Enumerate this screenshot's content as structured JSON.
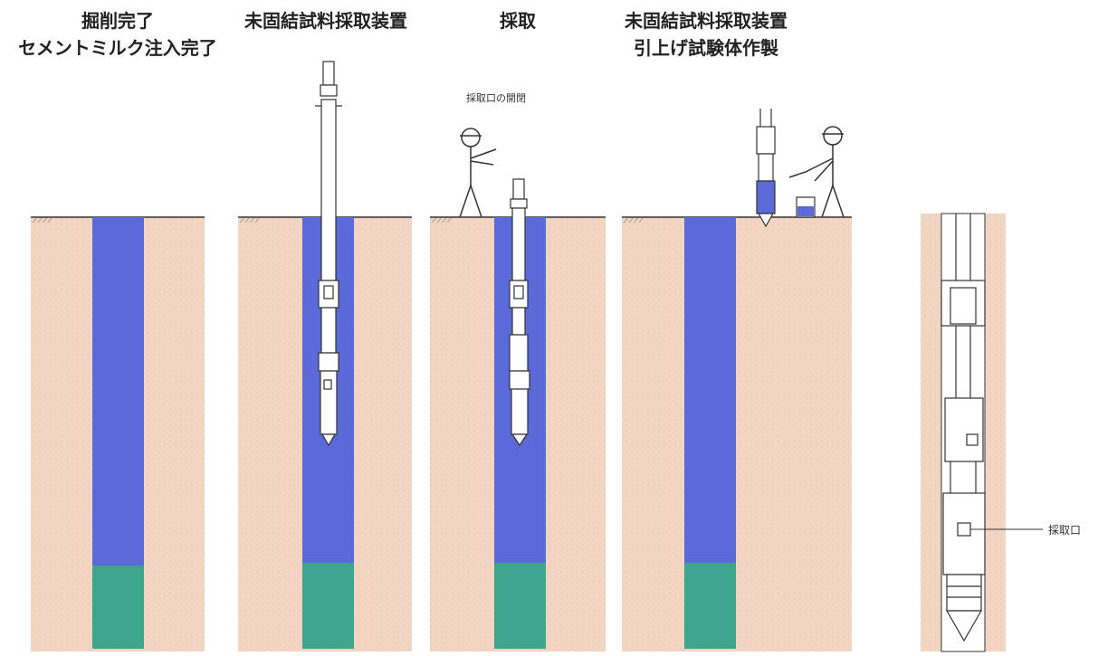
{
  "stages": [
    {
      "id": "excavation",
      "title_lines": [
        "掘削完了",
        "セメントミルク注入完了"
      ]
    },
    {
      "id": "insertion",
      "title_lines": [
        "未固結試料採取装置"
      ]
    },
    {
      "id": "sampling",
      "title_lines": [
        "採取"
      ],
      "annotation": "採取口の開閉"
    },
    {
      "id": "extraction",
      "title_lines": [
        "未固結試料採取装置",
        "引上げ試験体作製"
      ]
    }
  ],
  "detail": {
    "port_label": "採取口"
  },
  "colors": {
    "ground": "#f2d5c2",
    "cement_milk": "#5a6ad8",
    "mixed_soil": "#3fa58c",
    "device": "#ffffff",
    "outline": "#333333"
  }
}
